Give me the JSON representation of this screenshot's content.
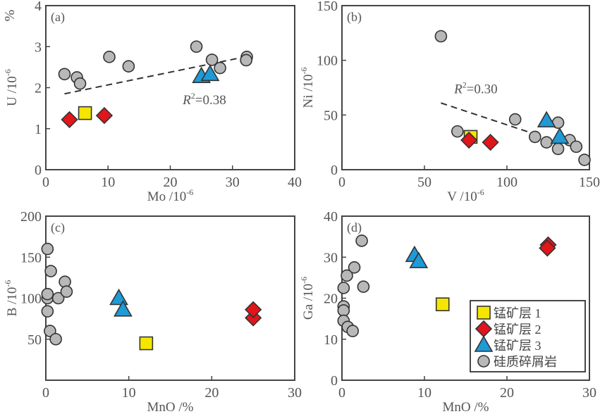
{
  "corner_label": "%",
  "legend": {
    "placement": "bottom-right of panel d",
    "entries": [
      {
        "label": "锰矿层 1",
        "marker": "square",
        "color": "#f5e600"
      },
      {
        "label": "锰矿层 2",
        "marker": "diamond",
        "color": "#e0161b"
      },
      {
        "label": "锰矿层 3",
        "marker": "triangle",
        "color": "#1e9ad6"
      },
      {
        "label": "硅质碎屑岩",
        "marker": "circle",
        "color": "#b8b8b8"
      }
    ]
  },
  "chart_data": [
    {
      "type": "scatter",
      "panel": "(a)",
      "xlabel": "Mo /10",
      "xlabel_sup": "-6",
      "ylabel": "U /10",
      "ylabel_sup": "-6",
      "xlim": [
        0,
        40
      ],
      "ylim": [
        0,
        4
      ],
      "xticks": [
        "0",
        "10",
        "20",
        "30",
        "40"
      ],
      "yticks": [
        "0",
        "1",
        "2",
        "3",
        "4"
      ],
      "xtick_values": [
        0,
        10,
        20,
        30,
        40
      ],
      "ytick_values": [
        0,
        1,
        2,
        3,
        4
      ],
      "annotation": {
        "text_r": "R",
        "text_sup": "2",
        "text_val": "=0.38",
        "at": [
          22,
          1.6
        ]
      },
      "trendline": [
        [
          3,
          1.85
        ],
        [
          32,
          2.75
        ]
      ],
      "series": [
        {
          "name": "锰矿层 1",
          "marker": "square",
          "points": [
            [
              6.3,
              1.38
            ]
          ]
        },
        {
          "name": "锰矿层 2",
          "marker": "diamond",
          "points": [
            [
              3.8,
              1.22
            ],
            [
              9.4,
              1.32
            ]
          ]
        },
        {
          "name": "锰矿层 3",
          "marker": "triangle",
          "points": [
            [
              25,
              2.28
            ],
            [
              26.4,
              2.33
            ]
          ]
        },
        {
          "name": "硅质碎屑岩",
          "marker": "circle",
          "points": [
            [
              3,
              2.33
            ],
            [
              5,
              2.25
            ],
            [
              5.5,
              2.1
            ],
            [
              10.2,
              2.75
            ],
            [
              13.3,
              2.52
            ],
            [
              24.2,
              3.0
            ],
            [
              26.7,
              2.68
            ],
            [
              28,
              2.48
            ],
            [
              32.3,
              2.75
            ],
            [
              32.2,
              2.67
            ]
          ]
        }
      ]
    },
    {
      "type": "scatter",
      "panel": "(b)",
      "xlabel": "V /10",
      "xlabel_sup": "-6",
      "ylabel": "Ni /10",
      "ylabel_sup": "-6",
      "xlim": [
        0,
        150
      ],
      "ylim": [
        0,
        150
      ],
      "xticks": [
        "0",
        "50",
        "100",
        "150"
      ],
      "yticks": [
        "0",
        "50",
        "100",
        "150"
      ],
      "xtick_values": [
        0,
        50,
        100,
        150
      ],
      "ytick_values": [
        0,
        50,
        100,
        150
      ],
      "annotation": {
        "text_r": "R",
        "text_sup": "2",
        "text_val": "=0.30",
        "at": [
          68,
          70
        ]
      },
      "trendline": [
        [
          60,
          61
        ],
        [
          116,
          33
        ]
      ],
      "series": [
        {
          "name": "锰矿层 1",
          "marker": "square",
          "points": [
            [
              78,
              30
            ]
          ]
        },
        {
          "name": "锰矿层 2",
          "marker": "diamond",
          "points": [
            [
              77,
              27
            ],
            [
              90,
              25
            ]
          ]
        },
        {
          "name": "锰矿层 3",
          "marker": "triangle",
          "points": [
            [
              124,
              45
            ],
            [
              132,
              30
            ]
          ]
        },
        {
          "name": "硅质碎屑岩",
          "marker": "circle",
          "points": [
            [
              60,
              122
            ],
            [
              70,
              35
            ],
            [
              105,
              46
            ],
            [
              131,
              43
            ],
            [
              117,
              30
            ],
            [
              124,
              25
            ],
            [
              131,
              19
            ],
            [
              138,
              27
            ],
            [
              142,
              21
            ],
            [
              147,
              9
            ]
          ]
        }
      ]
    },
    {
      "type": "scatter",
      "panel": "(c)",
      "xlabel": "MnO /%",
      "xlabel_sup": "",
      "ylabel": "B /10",
      "ylabel_sup": "-6",
      "xlim": [
        0,
        30
      ],
      "ylim": [
        0,
        200
      ],
      "xticks": [
        "0",
        "10",
        "20",
        "30"
      ],
      "yticks": [
        "50",
        "100",
        "150",
        "200"
      ],
      "xtick_values": [
        0,
        10,
        20,
        30
      ],
      "ytick_values": [
        50,
        100,
        150,
        200
      ],
      "series": [
        {
          "name": "锰矿层 1",
          "marker": "square",
          "points": [
            [
              12.1,
              45
            ]
          ]
        },
        {
          "name": "锰矿层 2",
          "marker": "diamond",
          "points": [
            [
              25,
              76
            ],
            [
              25,
              86
            ]
          ]
        },
        {
          "name": "锰矿层 3",
          "marker": "triangle",
          "points": [
            [
              8.8,
              100
            ],
            [
              9.3,
              86
            ]
          ]
        },
        {
          "name": "硅质碎屑岩",
          "marker": "circle",
          "points": [
            [
              0.2,
              160
            ],
            [
              0.6,
              133
            ],
            [
              0.2,
              100
            ],
            [
              0.2,
              105
            ],
            [
              0.2,
              84
            ],
            [
              0.5,
              60
            ],
            [
              1.2,
              50
            ],
            [
              1.5,
              100
            ],
            [
              2.3,
              120
            ],
            [
              2.5,
              108
            ]
          ]
        }
      ]
    },
    {
      "type": "scatter",
      "panel": "(d)",
      "xlabel": "MnO /%",
      "xlabel_sup": "",
      "ylabel": "Ga /10",
      "ylabel_sup": "-6",
      "xlim": [
        0,
        30
      ],
      "ylim": [
        0,
        40
      ],
      "xticks": [
        "0",
        "10",
        "20",
        "30"
      ],
      "yticks": [
        "0",
        "10",
        "20",
        "30",
        "40"
      ],
      "xtick_values": [
        0,
        10,
        20,
        30
      ],
      "ytick_values": [
        0,
        10,
        20,
        30,
        40
      ],
      "series": [
        {
          "name": "锰矿层 1",
          "marker": "square",
          "points": [
            [
              12.2,
              18.5
            ]
          ]
        },
        {
          "name": "锰矿层 2",
          "marker": "diamond",
          "points": [
            [
              25,
              33
            ],
            [
              24.9,
              32.2
            ]
          ]
        },
        {
          "name": "锰矿层 3",
          "marker": "triangle",
          "points": [
            [
              8.8,
              30.5
            ],
            [
              9.3,
              29
            ]
          ]
        },
        {
          "name": "硅质碎屑岩",
          "marker": "circle",
          "points": [
            [
              2.4,
              34
            ],
            [
              1.5,
              27.5
            ],
            [
              0.6,
              25.5
            ],
            [
              0.2,
              22.5
            ],
            [
              2.6,
              22.8
            ],
            [
              0.2,
              18
            ],
            [
              0.2,
              17
            ],
            [
              0.2,
              14.5
            ],
            [
              0.7,
              13
            ],
            [
              1.3,
              12
            ]
          ]
        }
      ]
    }
  ]
}
